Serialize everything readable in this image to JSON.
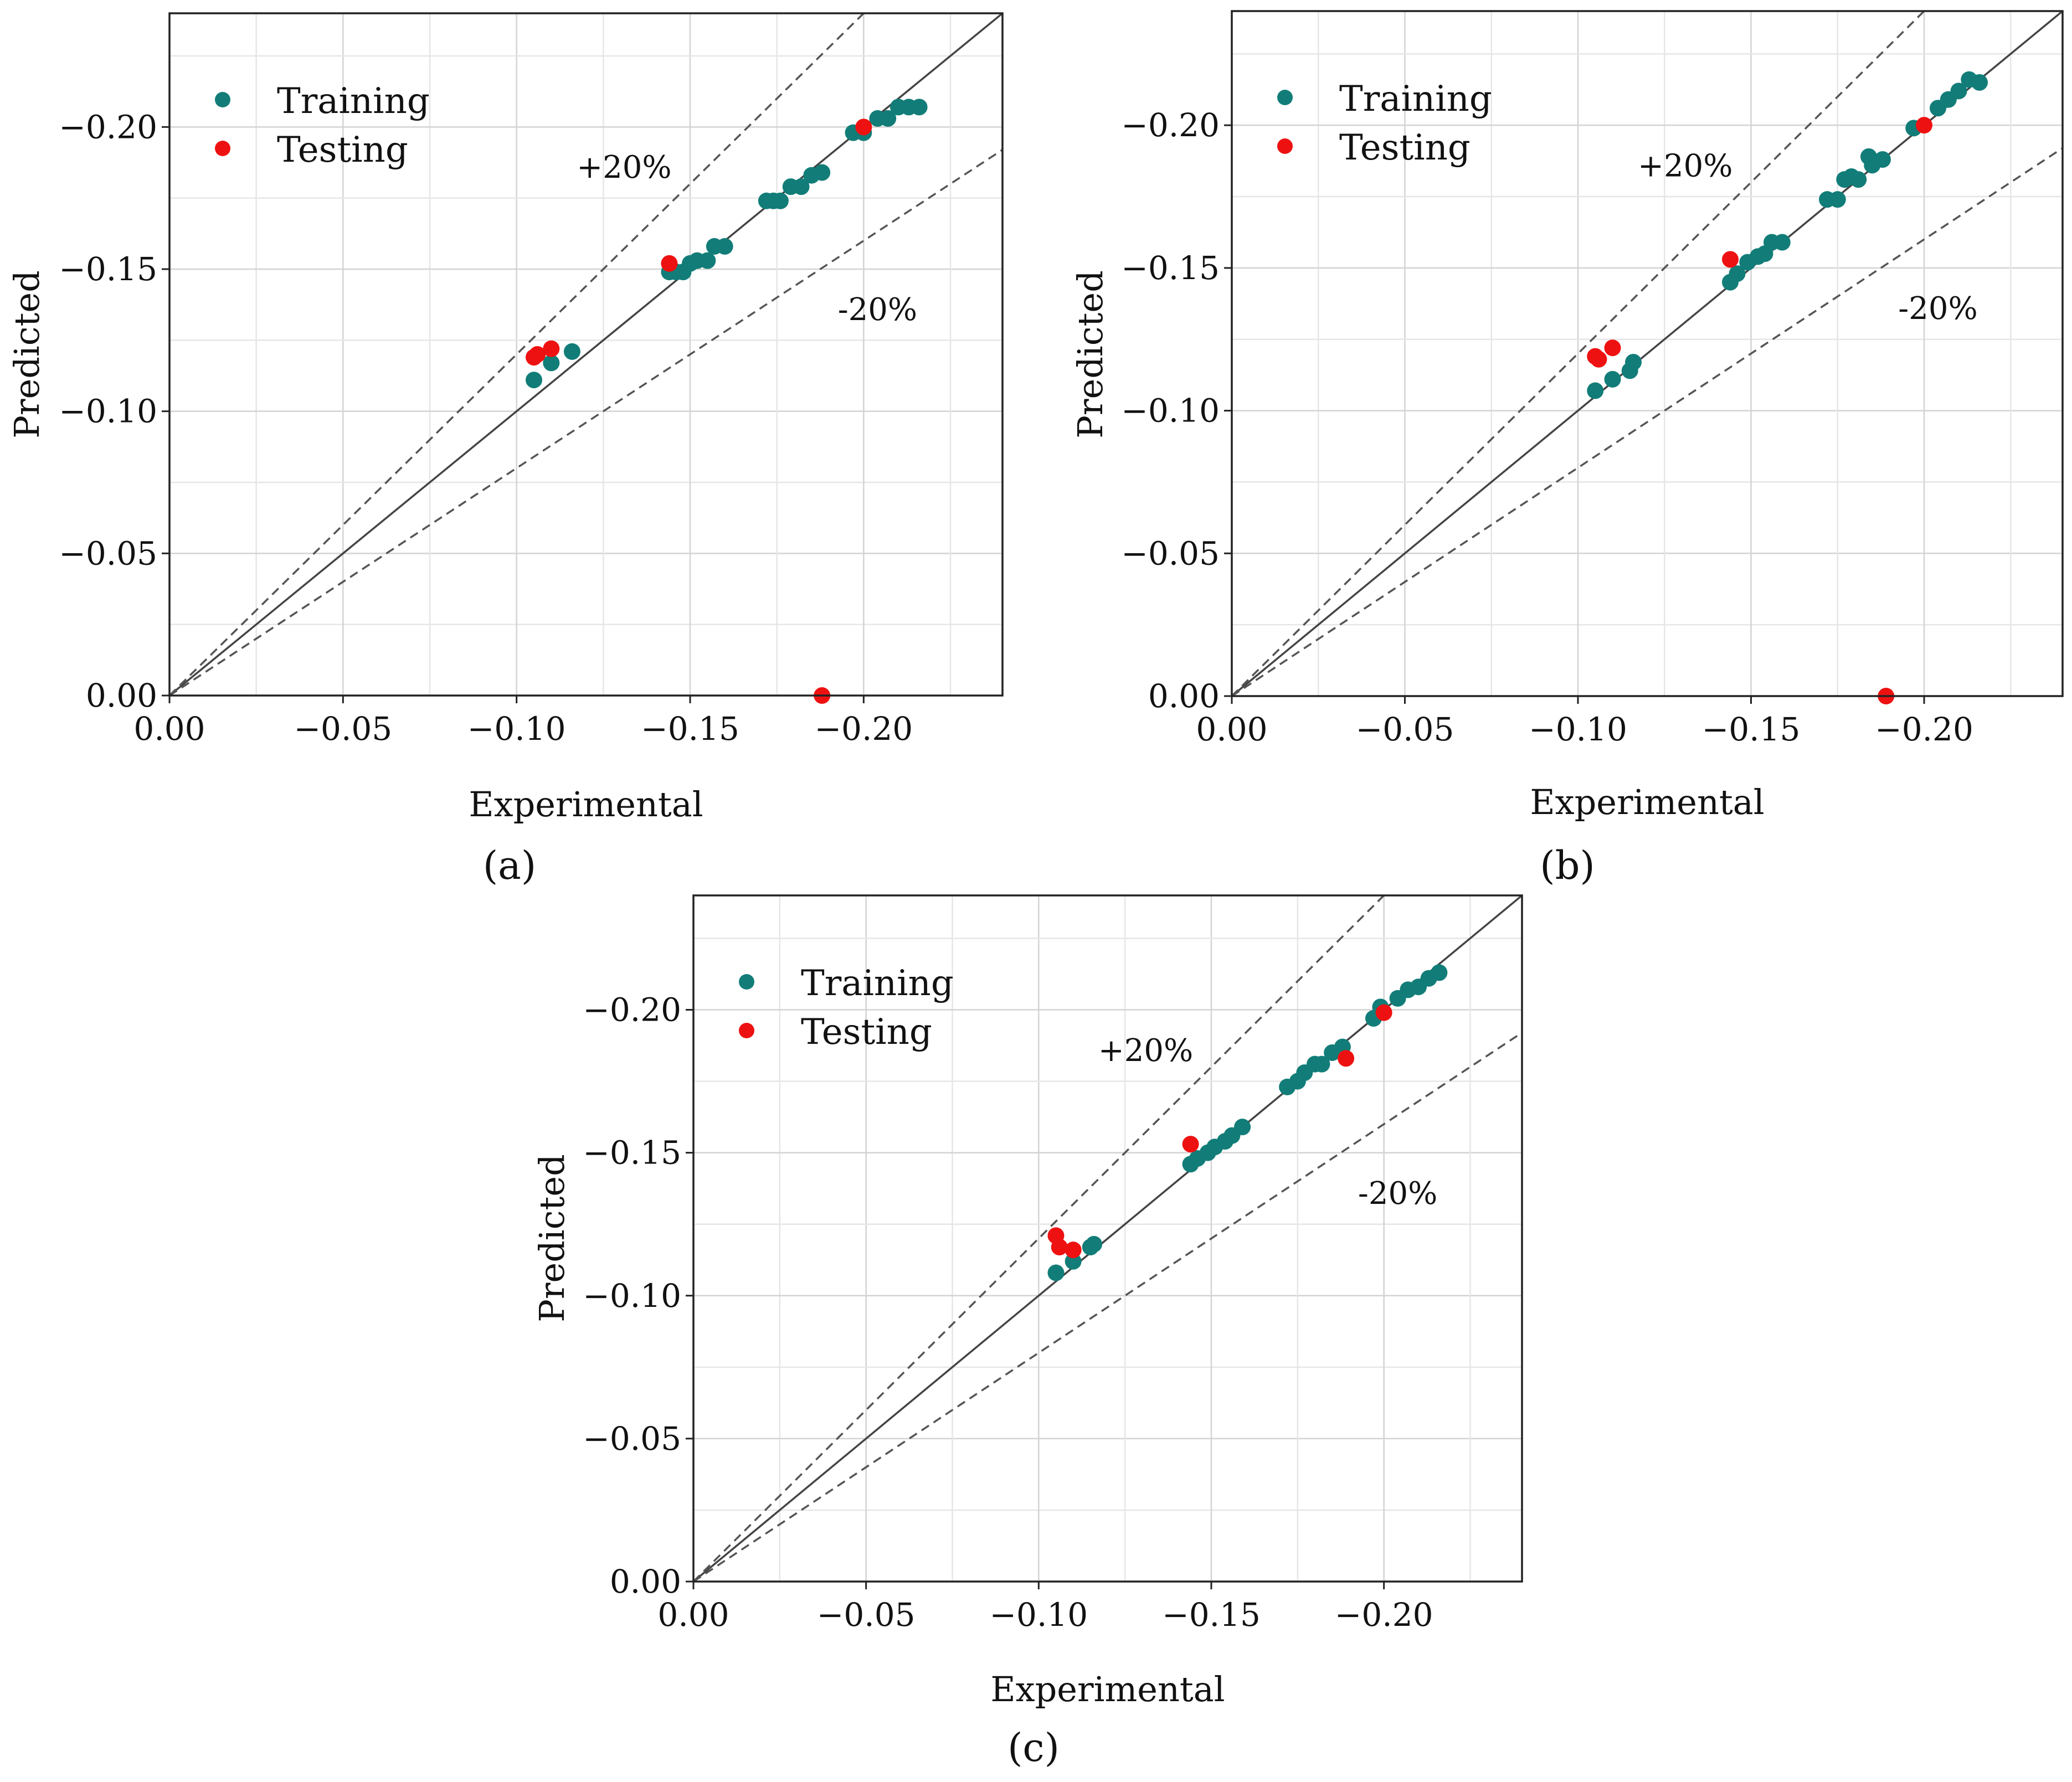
{
  "figure": {
    "colors": {
      "training": "#127d78",
      "testing": "#ee1111",
      "grid": "#d3d3d3",
      "identity": "#444444",
      "band": "#555555"
    }
  },
  "chart_data": [
    {
      "type": "scatter",
      "panel_label": "(a)",
      "xlabel": "Experimental",
      "ylabel": "Predicted",
      "xlim": [
        0,
        -0.24
      ],
      "ylim": [
        0,
        -0.24
      ],
      "xticks": [
        "0.00",
        "−0.05",
        "−0.10",
        "−0.15",
        "−0.20"
      ],
      "yticks": [
        "0.00",
        "−0.05",
        "−0.10",
        "−0.15",
        "−0.20"
      ],
      "grid": true,
      "legend_position": "top-left",
      "band_labels": {
        "upper": "+20%",
        "lower": "-20%"
      },
      "reference_lines": [
        "y = x",
        "y = 1.2x",
        "y = 0.8x"
      ],
      "series": [
        {
          "name": "Training",
          "x": [
            -0.105,
            -0.11,
            -0.116,
            -0.144,
            -0.146,
            -0.148,
            -0.15,
            -0.152,
            -0.155,
            -0.157,
            -0.16,
            -0.172,
            -0.174,
            -0.176,
            -0.179,
            -0.182,
            -0.185,
            -0.188,
            -0.197,
            -0.2,
            -0.204,
            -0.207,
            -0.21,
            -0.213,
            -0.216
          ],
          "y": [
            -0.111,
            -0.117,
            -0.121,
            -0.149,
            -0.149,
            -0.149,
            -0.152,
            -0.153,
            -0.153,
            -0.158,
            -0.158,
            -0.174,
            -0.174,
            -0.174,
            -0.179,
            -0.179,
            -0.183,
            -0.184,
            -0.198,
            -0.198,
            -0.203,
            -0.203,
            -0.207,
            -0.207,
            -0.207
          ]
        },
        {
          "name": "Testing",
          "x": [
            -0.105,
            -0.106,
            -0.11,
            -0.144,
            -0.188,
            -0.2
          ],
          "y": [
            -0.119,
            -0.12,
            -0.122,
            -0.152,
            0.0,
            -0.2
          ]
        }
      ]
    },
    {
      "type": "scatter",
      "panel_label": "(b)",
      "xlabel": "Experimental",
      "ylabel": "Predicted",
      "xlim": [
        0,
        -0.24
      ],
      "ylim": [
        0,
        -0.24
      ],
      "xticks": [
        "0.00",
        "−0.05",
        "−0.10",
        "−0.15",
        "−0.20"
      ],
      "yticks": [
        "0.00",
        "−0.05",
        "−0.10",
        "−0.15",
        "−0.20"
      ],
      "grid": true,
      "legend_position": "top-left",
      "band_labels": {
        "upper": "+20%",
        "lower": "-20%"
      },
      "reference_lines": [
        "y = x",
        "y = 1.2x",
        "y = 0.8x"
      ],
      "series": [
        {
          "name": "Training",
          "x": [
            -0.105,
            -0.11,
            -0.115,
            -0.116,
            -0.144,
            -0.146,
            -0.149,
            -0.152,
            -0.154,
            -0.156,
            -0.159,
            -0.172,
            -0.175,
            -0.177,
            -0.179,
            -0.181,
            -0.184,
            -0.185,
            -0.188,
            -0.197,
            -0.204,
            -0.207,
            -0.21,
            -0.213,
            -0.216
          ],
          "y": [
            -0.107,
            -0.111,
            -0.114,
            -0.117,
            -0.145,
            -0.148,
            -0.152,
            -0.154,
            -0.155,
            -0.159,
            -0.159,
            -0.174,
            -0.174,
            -0.181,
            -0.182,
            -0.181,
            -0.189,
            -0.186,
            -0.188,
            -0.199,
            -0.206,
            -0.209,
            -0.212,
            -0.216,
            -0.215
          ]
        },
        {
          "name": "Testing",
          "x": [
            -0.105,
            -0.106,
            -0.11,
            -0.144,
            -0.189,
            -0.2
          ],
          "y": [
            -0.119,
            -0.118,
            -0.122,
            -0.153,
            0.0,
            -0.2
          ]
        }
      ]
    },
    {
      "type": "scatter",
      "panel_label": "(c)",
      "xlabel": "Experimental",
      "ylabel": "Predicted",
      "xlim": [
        0,
        -0.24
      ],
      "ylim": [
        0,
        -0.24
      ],
      "xticks": [
        "0.00",
        "−0.05",
        "−0.10",
        "−0.15",
        "−0.20"
      ],
      "yticks": [
        "0.00",
        "−0.05",
        "−0.10",
        "−0.15",
        "−0.20"
      ],
      "grid": true,
      "legend_position": "top-left",
      "band_labels": {
        "upper": "+20%",
        "lower": "-20%"
      },
      "reference_lines": [
        "y = x",
        "y = 1.2x",
        "y = 0.8x"
      ],
      "series": [
        {
          "name": "Training",
          "x": [
            -0.105,
            -0.11,
            -0.115,
            -0.116,
            -0.144,
            -0.146,
            -0.149,
            -0.151,
            -0.154,
            -0.156,
            -0.159,
            -0.172,
            -0.175,
            -0.177,
            -0.18,
            -0.182,
            -0.185,
            -0.188,
            -0.197,
            -0.199,
            -0.204,
            -0.207,
            -0.21,
            -0.213,
            -0.216
          ],
          "y": [
            -0.108,
            -0.112,
            -0.117,
            -0.118,
            -0.146,
            -0.148,
            -0.15,
            -0.152,
            -0.154,
            -0.156,
            -0.159,
            -0.173,
            -0.175,
            -0.178,
            -0.181,
            -0.181,
            -0.185,
            -0.187,
            -0.197,
            -0.201,
            -0.204,
            -0.207,
            -0.208,
            -0.211,
            -0.213
          ]
        },
        {
          "name": "Testing",
          "x": [
            -0.105,
            -0.106,
            -0.11,
            -0.144,
            -0.189,
            -0.2
          ],
          "y": [
            -0.121,
            -0.117,
            -0.116,
            -0.153,
            -0.183,
            -0.199
          ]
        }
      ]
    }
  ]
}
